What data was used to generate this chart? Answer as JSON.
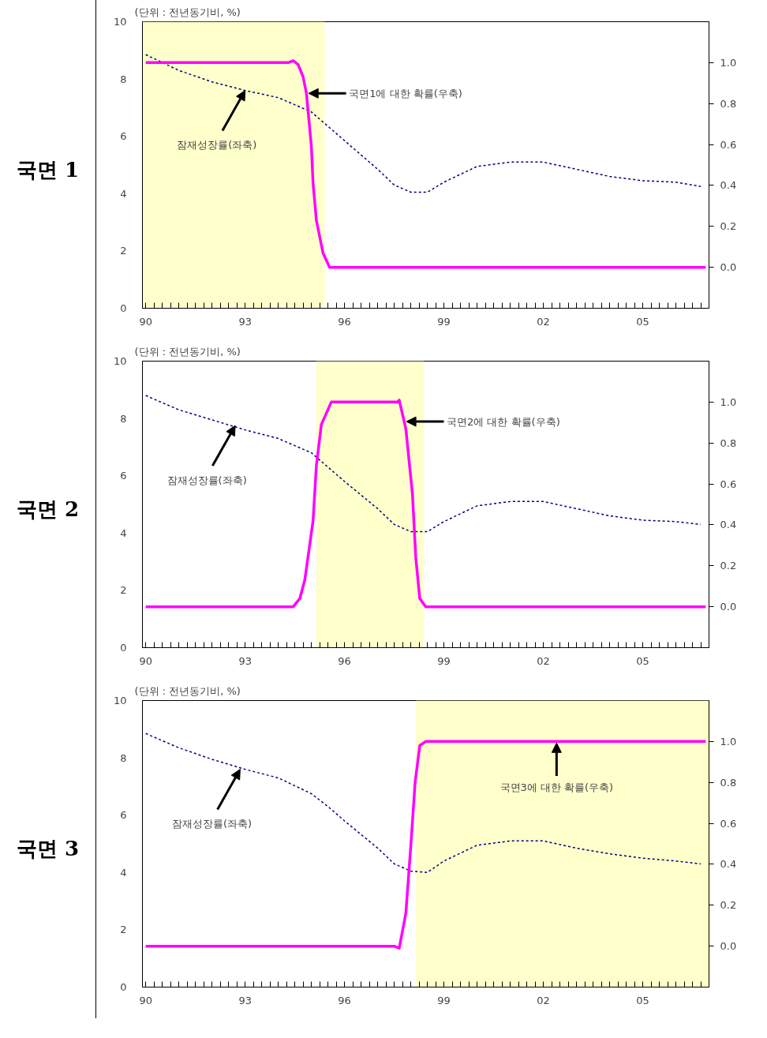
{
  "chart_data": [
    {
      "type": "line",
      "title": "국면 1",
      "subtitle": "(단위 : 전년동기비, %)",
      "xlim": [
        1989.9,
        2007
      ],
      "ylim": [
        0,
        10
      ],
      "y2lim": [
        -0.2,
        1.2
      ],
      "xticks": [
        {
          "value": 1990,
          "label": "90"
        },
        {
          "value": 1990.25,
          "label": null
        },
        {
          "value": 1990.5,
          "label": null
        },
        {
          "value": 1990.75,
          "label": null
        },
        {
          "value": 1991,
          "label": null
        },
        {
          "value": 1991.25,
          "label": null
        },
        {
          "value": 1991.5,
          "label": null
        },
        {
          "value": 1991.75,
          "label": null
        },
        {
          "value": 1992,
          "label": null
        },
        {
          "value": 1992.25,
          "label": null
        },
        {
          "value": 1992.5,
          "label": null
        },
        {
          "value": 1992.75,
          "label": null
        },
        {
          "value": 1993,
          "label": "93"
        },
        {
          "value": 1993.25,
          "label": null
        },
        {
          "value": 1993.5,
          "label": null
        },
        {
          "value": 1993.75,
          "label": null
        },
        {
          "value": 1994,
          "label": null
        },
        {
          "value": 1994.25,
          "label": null
        },
        {
          "value": 1994.5,
          "label": null
        },
        {
          "value": 1994.75,
          "label": null
        },
        {
          "value": 1995,
          "label": null
        },
        {
          "value": 1995.25,
          "label": null
        },
        {
          "value": 1995.5,
          "label": null
        },
        {
          "value": 1995.75,
          "label": null
        },
        {
          "value": 1996,
          "label": "96"
        },
        {
          "value": 1996.25,
          "label": null
        },
        {
          "value": 1996.5,
          "label": null
        },
        {
          "value": 1996.75,
          "label": null
        },
        {
          "value": 1997,
          "label": null
        },
        {
          "value": 1997.25,
          "label": null
        },
        {
          "value": 1997.5,
          "label": null
        },
        {
          "value": 1997.75,
          "label": null
        },
        {
          "value": 1998,
          "label": null
        },
        {
          "value": 1998.25,
          "label": null
        },
        {
          "value": 1998.5,
          "label": null
        },
        {
          "value": 1998.75,
          "label": null
        },
        {
          "value": 1999,
          "label": "99"
        },
        {
          "value": 1999.25,
          "label": null
        },
        {
          "value": 1999.5,
          "label": null
        },
        {
          "value": 1999.75,
          "label": null
        },
        {
          "value": 2000,
          "label": null
        },
        {
          "value": 2000.25,
          "label": null
        },
        {
          "value": 2000.5,
          "label": null
        },
        {
          "value": 2000.75,
          "label": null
        },
        {
          "value": 2001,
          "label": null
        },
        {
          "value": 2001.25,
          "label": null
        },
        {
          "value": 2001.5,
          "label": null
        },
        {
          "value": 2001.75,
          "label": null
        },
        {
          "value": 2002,
          "label": "02"
        },
        {
          "value": 2002.25,
          "label": null
        },
        {
          "value": 2002.5,
          "label": null
        },
        {
          "value": 2002.75,
          "label": null
        },
        {
          "value": 2003,
          "label": null
        },
        {
          "value": 2003.25,
          "label": null
        },
        {
          "value": 2003.5,
          "label": null
        },
        {
          "value": 2003.75,
          "label": null
        },
        {
          "value": 2004,
          "label": null
        },
        {
          "value": 2004.25,
          "label": null
        },
        {
          "value": 2004.5,
          "label": null
        },
        {
          "value": 2004.75,
          "label": null
        },
        {
          "value": 2005,
          "label": "05"
        },
        {
          "value": 2005.25,
          "label": null
        },
        {
          "value": 2005.5,
          "label": null
        },
        {
          "value": 2005.75,
          "label": null
        },
        {
          "value": 2006,
          "label": null
        },
        {
          "value": 2006.25,
          "label": null
        },
        {
          "value": 2006.5,
          "label": null
        },
        {
          "value": 2006.75,
          "label": null
        }
      ],
      "yticks": [
        0,
        2,
        4,
        6,
        8,
        10
      ],
      "y2ticks": [
        {
          "value": 0,
          "label": "0.0"
        },
        {
          "value": 0.2,
          "label": "0.2"
        },
        {
          "value": 0.4,
          "label": "0.4"
        },
        {
          "value": 0.6,
          "label": "0.6"
        },
        {
          "value": 0.8,
          "label": "0.8"
        },
        {
          "value": 1,
          "label": "1.0"
        }
      ],
      "series": [
        {
          "color": "#000080",
          "line_style": "dashed",
          "x": [
            1990,
            1991,
            1992,
            1993,
            1994,
            1995,
            1995.5,
            1996,
            1997,
            1997.5,
            1998,
            1998.5,
            1999,
            2000,
            2001,
            2002,
            2003,
            2004,
            2005,
            2006,
            2006.75
          ],
          "values": [
            8.85,
            8.3,
            7.9,
            7.6,
            7.35,
            6.85,
            6.35,
            5.85,
            4.85,
            4.3,
            4.05,
            4.05,
            4.4,
            4.95,
            5.1,
            5.1,
            4.85,
            4.6,
            4.45,
            4.4,
            4.25
          ]
        },
        {
          "color": "#ff00ff",
          "axis": "y2",
          "x": [
            1990,
            1994.3,
            1994.45,
            1994.6,
            1994.75,
            1994.85,
            1995.0,
            1995.05,
            1995.15,
            1995.35,
            1995.55,
            2006.9
          ],
          "values": [
            1,
            1,
            1.01,
            0.99,
            0.93,
            0.85,
            0.59,
            0.41,
            0.23,
            0.07,
            0,
            0
          ]
        }
      ],
      "bands": [
        {
          "axis": "x",
          "from": 1989.9,
          "to": 1995.4,
          "color": "#ffffcc"
        }
      ],
      "annotations": [
        {
          "text": "잠재성장률(좌축)",
          "x": 1993,
          "y": 7.6
        },
        {
          "text": "국면1에 대한 확률(우축)",
          "x": 1994.85,
          "y": 7.5
        }
      ],
      "grid": false
    },
    {
      "type": "line",
      "title": "국면 2",
      "subtitle": "(단위 : 전년동기비, %)",
      "xlim": [
        1989.9,
        2007
      ],
      "ylim": [
        0,
        10
      ],
      "y2lim": [
        -0.2,
        1.2
      ],
      "xticks": [
        {
          "value": 1990,
          "label": "90"
        },
        {
          "value": 1990.25,
          "label": null
        },
        {
          "value": 1990.5,
          "label": null
        },
        {
          "value": 1990.75,
          "label": null
        },
        {
          "value": 1991,
          "label": null
        },
        {
          "value": 1991.25,
          "label": null
        },
        {
          "value": 1991.5,
          "label": null
        },
        {
          "value": 1991.75,
          "label": null
        },
        {
          "value": 1992,
          "label": null
        },
        {
          "value": 1992.25,
          "label": null
        },
        {
          "value": 1992.5,
          "label": null
        },
        {
          "value": 1992.75,
          "label": null
        },
        {
          "value": 1993,
          "label": "93"
        },
        {
          "value": 1993.25,
          "label": null
        },
        {
          "value": 1993.5,
          "label": null
        },
        {
          "value": 1993.75,
          "label": null
        },
        {
          "value": 1994,
          "label": null
        },
        {
          "value": 1994.25,
          "label": null
        },
        {
          "value": 1994.5,
          "label": null
        },
        {
          "value": 1994.75,
          "label": null
        },
        {
          "value": 1995,
          "label": null
        },
        {
          "value": 1995.25,
          "label": null
        },
        {
          "value": 1995.5,
          "label": null
        },
        {
          "value": 1995.75,
          "label": null
        },
        {
          "value": 1996,
          "label": "96"
        },
        {
          "value": 1996.25,
          "label": null
        },
        {
          "value": 1996.5,
          "label": null
        },
        {
          "value": 1996.75,
          "label": null
        },
        {
          "value": 1997,
          "label": null
        },
        {
          "value": 1997.25,
          "label": null
        },
        {
          "value": 1997.5,
          "label": null
        },
        {
          "value": 1997.75,
          "label": null
        },
        {
          "value": 1998,
          "label": null
        },
        {
          "value": 1998.25,
          "label": null
        },
        {
          "value": 1998.5,
          "label": null
        },
        {
          "value": 1998.75,
          "label": null
        },
        {
          "value": 1999,
          "label": "99"
        },
        {
          "value": 1999.25,
          "label": null
        },
        {
          "value": 1999.5,
          "label": null
        },
        {
          "value": 1999.75,
          "label": null
        },
        {
          "value": 2000,
          "label": null
        },
        {
          "value": 2000.25,
          "label": null
        },
        {
          "value": 2000.5,
          "label": null
        },
        {
          "value": 2000.75,
          "label": null
        },
        {
          "value": 2001,
          "label": null
        },
        {
          "value": 2001.25,
          "label": null
        },
        {
          "value": 2001.5,
          "label": null
        },
        {
          "value": 2001.75,
          "label": null
        },
        {
          "value": 2002,
          "label": "02"
        },
        {
          "value": 2002.25,
          "label": null
        },
        {
          "value": 2002.5,
          "label": null
        },
        {
          "value": 2002.75,
          "label": null
        },
        {
          "value": 2003,
          "label": null
        },
        {
          "value": 2003.25,
          "label": null
        },
        {
          "value": 2003.5,
          "label": null
        },
        {
          "value": 2003.75,
          "label": null
        },
        {
          "value": 2004,
          "label": null
        },
        {
          "value": 2004.25,
          "label": null
        },
        {
          "value": 2004.5,
          "label": null
        },
        {
          "value": 2004.75,
          "label": null
        },
        {
          "value": 2005,
          "label": "05"
        },
        {
          "value": 2005.25,
          "label": null
        },
        {
          "value": 2005.5,
          "label": null
        },
        {
          "value": 2005.75,
          "label": null
        },
        {
          "value": 2006,
          "label": null
        },
        {
          "value": 2006.25,
          "label": null
        },
        {
          "value": 2006.5,
          "label": null
        },
        {
          "value": 2006.75,
          "label": null
        }
      ],
      "yticks": [
        0,
        2,
        4,
        6,
        8,
        10
      ],
      "y2ticks": [
        {
          "value": 0,
          "label": "0.0"
        },
        {
          "value": 0.2,
          "label": "0.2"
        },
        {
          "value": 0.4,
          "label": "0.4"
        },
        {
          "value": 0.6,
          "label": "0.6"
        },
        {
          "value": 0.8,
          "label": "0.8"
        },
        {
          "value": 1,
          "label": "1.0"
        }
      ],
      "series": [
        {
          "color": "#000080",
          "line_style": "dashed",
          "x": [
            1990,
            1991,
            1992,
            1993,
            1994,
            1995,
            1995.5,
            1996,
            1997,
            1997.5,
            1998,
            1998.5,
            1999,
            2000,
            2001,
            2002,
            2003,
            2004,
            2005,
            2006,
            2006.75
          ],
          "values": [
            8.8,
            8.3,
            7.95,
            7.6,
            7.3,
            6.8,
            6.3,
            5.8,
            4.85,
            4.3,
            4.05,
            4.05,
            4.4,
            4.95,
            5.1,
            5.1,
            4.85,
            4.6,
            4.45,
            4.4,
            4.3
          ]
        },
        {
          "color": "#ff00ff",
          "axis": "y2",
          "x": [
            1990,
            1994.45,
            1994.65,
            1994.8,
            1995.05,
            1995.15,
            1995.3,
            1995.6,
            1997.6,
            1997.65,
            1997.85,
            1998.05,
            1998.15,
            1998.27,
            1998.45,
            2006.9
          ],
          "values": [
            0,
            0,
            0.04,
            0.13,
            0.42,
            0.69,
            0.89,
            1,
            1,
            1.01,
            0.87,
            0.55,
            0.24,
            0.04,
            0,
            0
          ]
        }
      ],
      "bands": [
        {
          "axis": "x",
          "from": 1995.15,
          "to": 1998.4,
          "color": "#ffffcc"
        }
      ],
      "annotations": [
        {
          "text": "잠재성장률(좌축)",
          "x": 1992.7,
          "y": 7.75
        },
        {
          "text": "국면2에 대한 확률(우축)",
          "x": 1997.8,
          "y": 7.89
        }
      ],
      "grid": false
    },
    {
      "type": "line",
      "title": "국면 3",
      "subtitle": "(단위 : 전년동기비, %)",
      "xlim": [
        1989.9,
        2007
      ],
      "ylim": [
        0,
        10
      ],
      "y2lim": [
        -0.2,
        1.2
      ],
      "xticks": [
        {
          "value": 1990,
          "label": "90"
        },
        {
          "value": 1990.25,
          "label": null
        },
        {
          "value": 1990.5,
          "label": null
        },
        {
          "value": 1990.75,
          "label": null
        },
        {
          "value": 1991,
          "label": null
        },
        {
          "value": 1991.25,
          "label": null
        },
        {
          "value": 1991.5,
          "label": null
        },
        {
          "value": 1991.75,
          "label": null
        },
        {
          "value": 1992,
          "label": null
        },
        {
          "value": 1992.25,
          "label": null
        },
        {
          "value": 1992.5,
          "label": null
        },
        {
          "value": 1992.75,
          "label": null
        },
        {
          "value": 1993,
          "label": "93"
        },
        {
          "value": 1993.25,
          "label": null
        },
        {
          "value": 1993.5,
          "label": null
        },
        {
          "value": 1993.75,
          "label": null
        },
        {
          "value": 1994,
          "label": null
        },
        {
          "value": 1994.25,
          "label": null
        },
        {
          "value": 1994.5,
          "label": null
        },
        {
          "value": 1994.75,
          "label": null
        },
        {
          "value": 1995,
          "label": null
        },
        {
          "value": 1995.25,
          "label": null
        },
        {
          "value": 1995.5,
          "label": null
        },
        {
          "value": 1995.75,
          "label": null
        },
        {
          "value": 1996,
          "label": "96"
        },
        {
          "value": 1996.25,
          "label": null
        },
        {
          "value": 1996.5,
          "label": null
        },
        {
          "value": 1996.75,
          "label": null
        },
        {
          "value": 1997,
          "label": null
        },
        {
          "value": 1997.25,
          "label": null
        },
        {
          "value": 1997.5,
          "label": null
        },
        {
          "value": 1997.75,
          "label": null
        },
        {
          "value": 1998,
          "label": null
        },
        {
          "value": 1998.25,
          "label": null
        },
        {
          "value": 1998.5,
          "label": null
        },
        {
          "value": 1998.75,
          "label": null
        },
        {
          "value": 1999,
          "label": "99"
        },
        {
          "value": 1999.25,
          "label": null
        },
        {
          "value": 1999.5,
          "label": null
        },
        {
          "value": 1999.75,
          "label": null
        },
        {
          "value": 2000,
          "label": null
        },
        {
          "value": 2000.25,
          "label": null
        },
        {
          "value": 2000.5,
          "label": null
        },
        {
          "value": 2000.75,
          "label": null
        },
        {
          "value": 2001,
          "label": null
        },
        {
          "value": 2001.25,
          "label": null
        },
        {
          "value": 2001.5,
          "label": null
        },
        {
          "value": 2001.75,
          "label": null
        },
        {
          "value": 2002,
          "label": "02"
        },
        {
          "value": 2002.25,
          "label": null
        },
        {
          "value": 2002.5,
          "label": null
        },
        {
          "value": 2002.75,
          "label": null
        },
        {
          "value": 2003,
          "label": null
        },
        {
          "value": 2003.25,
          "label": null
        },
        {
          "value": 2003.5,
          "label": null
        },
        {
          "value": 2003.75,
          "label": null
        },
        {
          "value": 2004,
          "label": null
        },
        {
          "value": 2004.25,
          "label": null
        },
        {
          "value": 2004.5,
          "label": null
        },
        {
          "value": 2004.75,
          "label": null
        },
        {
          "value": 2005,
          "label": "05"
        },
        {
          "value": 2005.25,
          "label": null
        },
        {
          "value": 2005.5,
          "label": null
        },
        {
          "value": 2005.75,
          "label": null
        },
        {
          "value": 2006,
          "label": null
        },
        {
          "value": 2006.25,
          "label": null
        },
        {
          "value": 2006.5,
          "label": null
        },
        {
          "value": 2006.75,
          "label": null
        }
      ],
      "yticks": [
        0,
        2,
        4,
        6,
        8,
        10
      ],
      "y2ticks": [
        {
          "value": 0,
          "label": "0.0"
        },
        {
          "value": 0.2,
          "label": "0.2"
        },
        {
          "value": 0.4,
          "label": "0.4"
        },
        {
          "value": 0.6,
          "label": "0.6"
        },
        {
          "value": 0.8,
          "label": "0.8"
        },
        {
          "value": 1,
          "label": "1.0"
        }
      ],
      "series": [
        {
          "color": "#000080",
          "line_style": "dashed",
          "x": [
            1990,
            1991,
            1992,
            1993,
            1994,
            1995,
            1995.5,
            1996,
            1997,
            1997.5,
            1998,
            1998.5,
            1999,
            2000,
            2001,
            2002,
            2003,
            2004,
            2005,
            2006,
            2006.75
          ],
          "values": [
            8.85,
            8.35,
            7.95,
            7.6,
            7.3,
            6.75,
            6.3,
            5.8,
            4.85,
            4.3,
            4.05,
            4.0,
            4.4,
            4.95,
            5.1,
            5.1,
            4.85,
            4.65,
            4.5,
            4.4,
            4.3
          ]
        },
        {
          "color": "#ff00ff",
          "axis": "y2",
          "x": [
            1990,
            1997.5,
            1997.65,
            1997.85,
            1998.0,
            1998.13,
            1998.27,
            1998.45,
            2006.9
          ],
          "values": [
            0,
            0,
            -0.01,
            0.16,
            0.49,
            0.8,
            0.98,
            1,
            1
          ]
        }
      ],
      "bands": [
        {
          "axis": "x",
          "from": 1998.15,
          "to": 2007,
          "color": "#ffffcc"
        }
      ],
      "annotations": [
        {
          "text": "잠재성장률(좌축)",
          "x": 1992.85,
          "y": 7.6
        },
        {
          "text": "국면3에 대한 확률(우축)",
          "x": 2002.4,
          "y": 8.57
        }
      ],
      "grid": false
    }
  ]
}
